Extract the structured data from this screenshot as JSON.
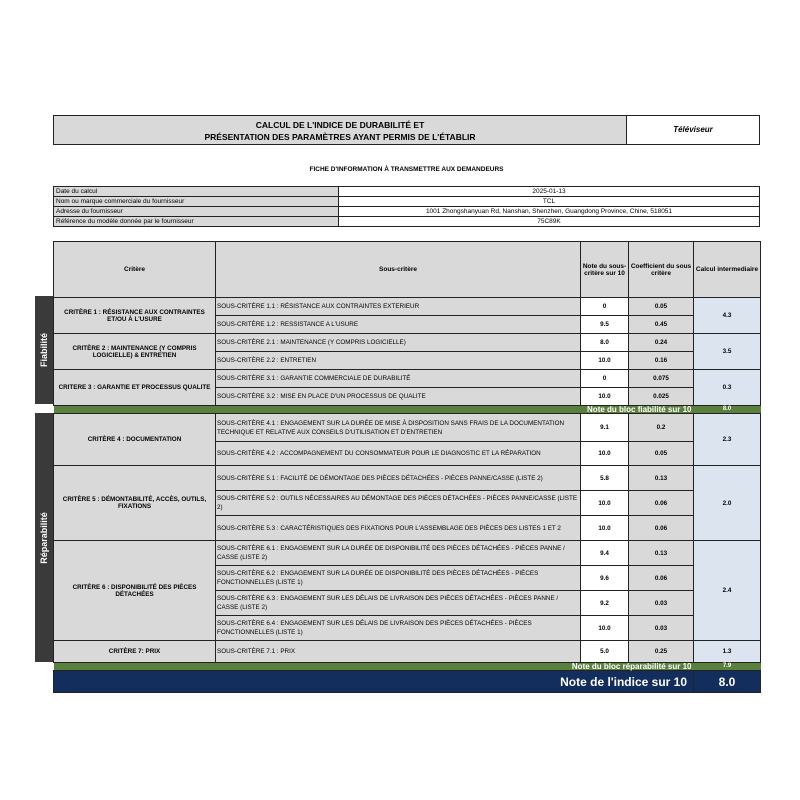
{
  "header": {
    "title_line1": "CALCUL DE L'INDICE DE DURABILITÉ ET",
    "title_line2": "PRÉSENTATION DES PARAMÈTRES AYANT PERMIS DE L'ÉTABLIR",
    "product_type": "Téléviseur",
    "subtitle": "FICHE D'INFORMATION À TRANSMETTRE AUX DEMANDEURS"
  },
  "info": [
    {
      "label": "Date du calcul",
      "value": "2025-01-13"
    },
    {
      "label": "Nom ou marque commerciale du fournisseur",
      "value": "TCL"
    },
    {
      "label": "Adresse du fournisseur",
      "value": "1001 Zhongshanyuan Rd, Nanshan, Shenzhen, Guangdong Province, Chine, 518051"
    },
    {
      "label": "Référence du modèle donnée par le fournisseur",
      "value": "75C89K"
    }
  ],
  "columns": {
    "critere": "Critère",
    "sous_critere": "Sous-critère",
    "note": "Note du sous-critère sur 10",
    "coef": "Coefficient du sous critère",
    "calc": "Calcul intermediaire"
  },
  "blocks": {
    "fiabilite": {
      "label": "Fiabilité",
      "total_label": "Note du bloc fiabilité sur 10",
      "total": "8.0"
    },
    "reparabilite": {
      "label": "Réparabilité",
      "total_label": "Note du bloc réparabilité sur 10",
      "total": "7.9"
    }
  },
  "criteria": [
    {
      "name": "CRITÈRE 1 : RÉSISTANCE AUX CONTRAINTES ET/OU À L'USURE",
      "calc": "4.3",
      "subs": [
        {
          "name": "SOUS-CRITÈRE 1.1 : RÉSISTANCE AUX CONTRAINTES EXTERIEUR",
          "note": "0",
          "coef": "0.05"
        },
        {
          "name": "SOUS-CRITÈRE 1.2 : RESSISTANCE A L'USURE",
          "note": "9.5",
          "coef": "0.45"
        }
      ]
    },
    {
      "name": "CRITÈRE 2 : MAINTENANCE (Y COMPRIS LOGICIELLE) & ENTRETIEN",
      "calc": "3.5",
      "subs": [
        {
          "name": "SOUS-CRITÈRE 2.1 : MAINTENANCE (Y COMPRIS LOGICIELLE)",
          "note": "8.0",
          "coef": "0.24"
        },
        {
          "name": "SOUS-CRITÈRE 2.2 : ENTRETIEN",
          "note": "10.0",
          "coef": "0.16"
        }
      ]
    },
    {
      "name": "CRITERE 3 : GARANTIE ET PROCESSUS QUALITE",
      "calc": "0.3",
      "subs": [
        {
          "name": "SOUS-CRITÈRE 3.1 : GARANTIE COMMERCIALE DE DURABILITÉ",
          "note": "0",
          "coef": "0.075"
        },
        {
          "name": "SOUS-CRITÈRE 3.2 : MISE EN PLACE D'UN PROCESSUS DE QUALITE",
          "note": "10.0",
          "coef": "0.025"
        }
      ]
    },
    {
      "name": "CRITÈRE 4 : DOCUMENTATION",
      "calc": "2.3",
      "subs": [
        {
          "name": "SOUS-CRITÈRE 4.1 : ENGAGEMENT SUR LA DURÉE DE MISE À DISPOSITION SANS FRAIS DE LA DOCUMENTATION TECHNIQUE ET RELATIVE AUX CONSEILS D'UTILISATION ET D'ENTRETIEN",
          "note": "9.1",
          "coef": "0.2"
        },
        {
          "name": "SOUS-CRITÈRE 4.2 : ACCOMPAGNEMENT DU CONSOMMATEUR POUR LE DIAGNOSTIC ET LA RÉPARATION",
          "note": "10.0",
          "coef": "0.05"
        }
      ]
    },
    {
      "name": "CRITÈRE 5 : DÉMONTABILITÉ, ACCÈS, OUTILS, FIXATIONS",
      "calc": "2.0",
      "subs": [
        {
          "name": "SOUS-CRITÈRE 5.1 : FACILITÉ DE DÉMONTAGE DES PIÈCES DÉTACHÉES - PIÈCES PANNE/CASSE (LISTE 2)",
          "note": "5.8",
          "coef": "0.13"
        },
        {
          "name": "SOUS-CRITÈRE 5.2 : OUTILS NÉCESSAIRES AU DÉMONTAGE DES PIÈCES DÉTACHÉES - PIÈCES PANNE/CASSE (LISTE 2)",
          "note": "10.0",
          "coef": "0.06"
        },
        {
          "name": "SOUS-CRITÈRE 5.3 : CARACTÉRISTIQUES DES FIXATIONS POUR L'ASSEMBLAGE DES PIÈCES DES LISTES 1 ET 2",
          "note": "10.0",
          "coef": "0.06"
        }
      ]
    },
    {
      "name": "CRITÈRE 6 : DISPONIBILITÉ DES PIÈCES DÉTACHÉES",
      "calc": "2.4",
      "subs": [
        {
          "name": "SOUS-CRITÈRE 6.1 : ENGAGEMENT SUR LA DURÉE DE DISPONIBILITÉ DES PIÈCES DÉTACHÉES - PIÈCES PANNE / CASSE (LISTE 2)",
          "note": "9.4",
          "coef": "0.13"
        },
        {
          "name": "SOUS-CRITÈRE 6.2 : ENGAGEMENT SUR LA DURÉE DE DISPONIBILITÉ DES PIÈCES DÉTACHÉES - PIÈCES FONCTIONNELLES (LISTE 1)",
          "note": "9.6",
          "coef": "0.06"
        },
        {
          "name": "SOUS-CRITÈRE 6.3 : ENGAGEMENT SUR LES DÉLAIS DE LIVRAISON DES PIÈCES DÉTACHÉES - PIÈCES PANNE / CASSE (LISTE 2)",
          "note": "9.2",
          "coef": "0.03"
        },
        {
          "name": "SOUS-CRITÈRE 6.4 : ENGAGEMENT SUR LES DÉLAIS DE LIVRAISON DES PIÈCES DÉTACHÉES - PIÈCES FONCTIONNELLES (LISTE 1)",
          "note": "10.0",
          "coef": "0.03"
        }
      ]
    },
    {
      "name": "CRITÈRE 7: PRIX",
      "calc": "1.3",
      "subs": [
        {
          "name": "SOUS-CRITÈRE 7.1 : PRIX",
          "note": "5.0",
          "coef": "0.25"
        }
      ]
    }
  ],
  "final": {
    "label": "Note de l'indice sur 10",
    "value": "8.0"
  },
  "colors": {
    "header_gray": "#d9d9d9",
    "calc_blue": "#dce4f0",
    "block_green": "#5a803d",
    "final_navy": "#132d5c",
    "side_dark": "#3a3a3a"
  }
}
